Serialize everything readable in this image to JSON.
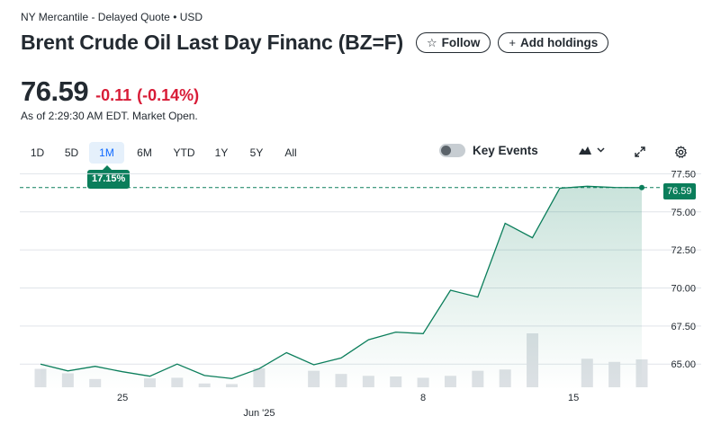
{
  "header": {
    "exchange_line": "NY Mercantile - Delayed Quote • USD",
    "title": "Brent Crude Oil Last Day Financ (BZ=F)",
    "follow_label": "Follow",
    "follow_icon": "star-outline-icon",
    "add_holdings_label": "Add holdings",
    "add_icon": "plus-icon"
  },
  "quote": {
    "price": "76.59",
    "change": "-0.11",
    "change_pct": "(-0.14%)",
    "as_of": "As of 2:29:30 AM EDT. Market Open."
  },
  "ranges": [
    "1D",
    "5D",
    "1M",
    "6M",
    "YTD",
    "1Y",
    "5Y",
    "All"
  ],
  "selected_range": "1M",
  "range_performance": "17.15%",
  "controls": {
    "key_events_label": "Key Events",
    "key_events_on": false,
    "chart_type_icon": "mountain-chart-icon",
    "expand_icon": "expand-icon",
    "settings_icon": "gear-icon"
  },
  "colors": {
    "positive": "#0b7e5b",
    "negative": "#d81c37",
    "active_tab": "#0f69ff",
    "volume_bar": "#dde1e5"
  },
  "chart_data": {
    "type": "area",
    "title": "",
    "xlabel": "",
    "ylabel": "",
    "ylim": [
      63.3,
      77.7
    ],
    "y_ticks": [
      "77.50",
      "75.00",
      "72.50",
      "70.00",
      "67.50",
      "65.00"
    ],
    "x_tick_labels": [
      {
        "label": "25",
        "index": 3
      },
      {
        "label": "Jun '25",
        "index": 8
      },
      {
        "label": "8",
        "index": 14
      },
      {
        "label": "15",
        "index": 19.5
      }
    ],
    "reference_line": 76.59,
    "last_price_label": "76.59",
    "series": [
      {
        "values": [
          65.0,
          64.55,
          64.85,
          64.5,
          64.2,
          65.0,
          64.25,
          64.05,
          64.7,
          65.75,
          64.95,
          65.4,
          66.6,
          67.1,
          67.0,
          69.85,
          69.4,
          74.25,
          73.3,
          76.55,
          76.68,
          76.6,
          76.59
        ]
      }
    ],
    "volume": [
      2.9,
      2.2,
      1.3,
      0,
      1.4,
      1.5,
      0.6,
      0.5,
      3.0,
      0,
      2.6,
      2.1,
      1.8,
      1.7,
      1.5,
      1.8,
      2.6,
      2.8,
      8.5,
      0,
      4.5,
      4.0,
      4.4
    ]
  }
}
